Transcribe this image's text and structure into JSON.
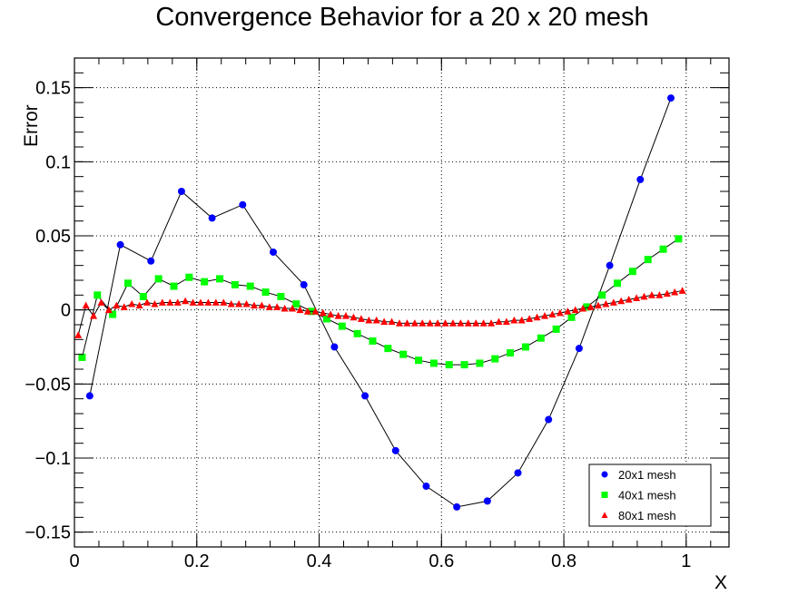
{
  "chart_data": {
    "type": "scatter",
    "title": "Convergence Behavior for a 20 x 20 mesh",
    "xlabel": "X",
    "ylabel": "Error",
    "xlim": [
      0,
      1.07
    ],
    "ylim": [
      -0.16,
      0.17
    ],
    "x_ticks": [
      0,
      0.2,
      0.4,
      0.6,
      0.8,
      1
    ],
    "x_tick_labels": [
      "0",
      "0.2",
      "0.4",
      "0.6",
      "0.8",
      "1"
    ],
    "y_ticks": [
      -0.15,
      -0.1,
      -0.05,
      0,
      0.05,
      0.1,
      0.15
    ],
    "y_tick_labels": [
      "−0.15",
      "−0.1",
      "−0.05",
      "0",
      "0.05",
      "0.1",
      "0.15"
    ],
    "grid": true,
    "legend_position": "bottom-right",
    "series": [
      {
        "name": "20x1 mesh",
        "color": "#0000ff",
        "marker": "circle",
        "x": [
          0.025,
          0.075,
          0.125,
          0.175,
          0.225,
          0.275,
          0.325,
          0.375,
          0.425,
          0.475,
          0.525,
          0.575,
          0.625,
          0.675,
          0.725,
          0.775,
          0.825,
          0.875,
          0.925,
          0.975
        ],
        "y": [
          -0.058,
          0.044,
          0.033,
          0.08,
          0.062,
          0.071,
          0.039,
          0.017,
          -0.025,
          -0.058,
          -0.095,
          -0.119,
          -0.133,
          -0.129,
          -0.11,
          -0.074,
          -0.026,
          0.03,
          0.088,
          0.143
        ]
      },
      {
        "name": "40x1 mesh",
        "color": "#00ff00",
        "marker": "square",
        "x": [
          0.0125,
          0.0375,
          0.0625,
          0.0875,
          0.1125,
          0.1375,
          0.1625,
          0.1875,
          0.2125,
          0.2375,
          0.2625,
          0.2875,
          0.3125,
          0.3375,
          0.3625,
          0.3875,
          0.4125,
          0.4375,
          0.4625,
          0.4875,
          0.5125,
          0.5375,
          0.5625,
          0.5875,
          0.6125,
          0.6375,
          0.6625,
          0.6875,
          0.7125,
          0.7375,
          0.7625,
          0.7875,
          0.8125,
          0.8375,
          0.8625,
          0.8875,
          0.9125,
          0.9375,
          0.9625,
          0.9875
        ],
        "y": [
          -0.032,
          0.01,
          -0.003,
          0.018,
          0.009,
          0.021,
          0.016,
          0.022,
          0.019,
          0.021,
          0.017,
          0.016,
          0.012,
          0.009,
          0.004,
          -0.001,
          -0.006,
          -0.011,
          -0.016,
          -0.021,
          -0.026,
          -0.03,
          -0.034,
          -0.036,
          -0.037,
          -0.037,
          -0.036,
          -0.033,
          -0.029,
          -0.025,
          -0.019,
          -0.013,
          -0.005,
          0.002,
          0.01,
          0.018,
          0.026,
          0.034,
          0.041,
          0.048
        ]
      },
      {
        "name": "80x1 mesh",
        "color": "#ff0000",
        "marker": "triangle",
        "x": [
          0.00625,
          0.01875,
          0.03125,
          0.04375,
          0.05625,
          0.06875,
          0.08125,
          0.09375,
          0.10625,
          0.11875,
          0.13125,
          0.14375,
          0.15625,
          0.16875,
          0.18125,
          0.19375,
          0.20625,
          0.21875,
          0.23125,
          0.24375,
          0.25625,
          0.26875,
          0.28125,
          0.29375,
          0.30625,
          0.31875,
          0.33125,
          0.34375,
          0.35625,
          0.36875,
          0.38125,
          0.39375,
          0.40625,
          0.41875,
          0.43125,
          0.44375,
          0.45625,
          0.46875,
          0.48125,
          0.49375,
          0.50625,
          0.51875,
          0.53125,
          0.54375,
          0.55625,
          0.56875,
          0.58125,
          0.59375,
          0.60625,
          0.61875,
          0.63125,
          0.64375,
          0.65625,
          0.66875,
          0.68125,
          0.69375,
          0.70625,
          0.71875,
          0.73125,
          0.74375,
          0.75625,
          0.76875,
          0.78125,
          0.79375,
          0.80625,
          0.81875,
          0.83125,
          0.84375,
          0.85625,
          0.86875,
          0.88125,
          0.89375,
          0.90625,
          0.91875,
          0.93125,
          0.94375,
          0.95625,
          0.96875,
          0.98125,
          0.99375
        ],
        "y": [
          -0.017,
          0.003,
          -0.004,
          0.005,
          0.0,
          0.003,
          0.002,
          0.004,
          0.003,
          0.005,
          0.004,
          0.005,
          0.005,
          0.005,
          0.006,
          0.005,
          0.005,
          0.005,
          0.005,
          0.005,
          0.004,
          0.004,
          0.004,
          0.003,
          0.003,
          0.002,
          0.002,
          0.001,
          0.001,
          0.0,
          -0.001,
          -0.001,
          -0.002,
          -0.003,
          -0.004,
          -0.004,
          -0.005,
          -0.006,
          -0.007,
          -0.007,
          -0.008,
          -0.008,
          -0.009,
          -0.009,
          -0.009,
          -0.009,
          -0.009,
          -0.009,
          -0.009,
          -0.009,
          -0.009,
          -0.009,
          -0.009,
          -0.009,
          -0.009,
          -0.008,
          -0.008,
          -0.007,
          -0.007,
          -0.006,
          -0.005,
          -0.004,
          -0.003,
          -0.002,
          -0.001,
          0.0,
          0.001,
          0.002,
          0.003,
          0.004,
          0.005,
          0.006,
          0.007,
          0.008,
          0.009,
          0.01,
          0.01,
          0.011,
          0.012,
          0.013
        ]
      }
    ]
  }
}
